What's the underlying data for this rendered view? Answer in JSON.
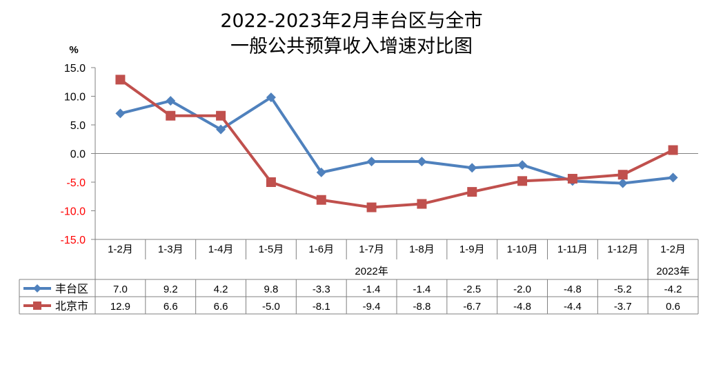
{
  "chart_data": {
    "type": "line",
    "title_line1": "2022-2023年2月丰台区与全市",
    "title_line2": "一般公共预算收入增速对比图",
    "ylabel": "%",
    "ylim": [
      -15,
      15
    ],
    "yticks": [
      15,
      10,
      5,
      0,
      -5,
      -10,
      -15
    ],
    "ytick_labels": [
      "15.0",
      "10.0",
      "5.0",
      "0.0",
      "-5.0",
      "-10.0",
      "-15.0"
    ],
    "categories": [
      "1-2月",
      "1-3月",
      "1-4月",
      "1-5月",
      "1-6月",
      "1-7月",
      "1-8月",
      "1-9月",
      "1-10月",
      "1-11月",
      "1-12月",
      "1-2月"
    ],
    "year_groups": [
      {
        "label": "2022年",
        "start": 0,
        "end": 10
      },
      {
        "label": "2023年",
        "start": 11,
        "end": 11
      }
    ],
    "series": [
      {
        "name": "丰台区",
        "color": "#4f81bd",
        "marker": "diamond",
        "values": [
          7.0,
          9.2,
          4.2,
          9.8,
          -3.3,
          -1.4,
          -1.4,
          -2.5,
          -2.0,
          -4.8,
          -5.2,
          -4.2
        ]
      },
      {
        "name": "北京市",
        "color": "#c0504d",
        "marker": "square",
        "values": [
          12.9,
          6.6,
          6.6,
          -5.0,
          -8.1,
          -9.4,
          -8.8,
          -6.7,
          -4.8,
          -4.4,
          -3.7,
          0.6
        ]
      }
    ],
    "table_values": [
      [
        "7.0",
        "9.2",
        "4.2",
        "9.8",
        "-3.3",
        "-1.4",
        "-1.4",
        "-2.5",
        "-2.0",
        "-4.8",
        "-5.2",
        "-4.2"
      ],
      [
        "12.9",
        "6.6",
        "6.6",
        "-5.0",
        "-8.1",
        "-9.4",
        "-8.8",
        "-6.7",
        "-4.8",
        "-4.4",
        "-3.7",
        "0.6"
      ]
    ],
    "colors": {
      "positive_tick": "#000000",
      "negative_tick": "#ff0000",
      "grid": "#808080"
    }
  }
}
